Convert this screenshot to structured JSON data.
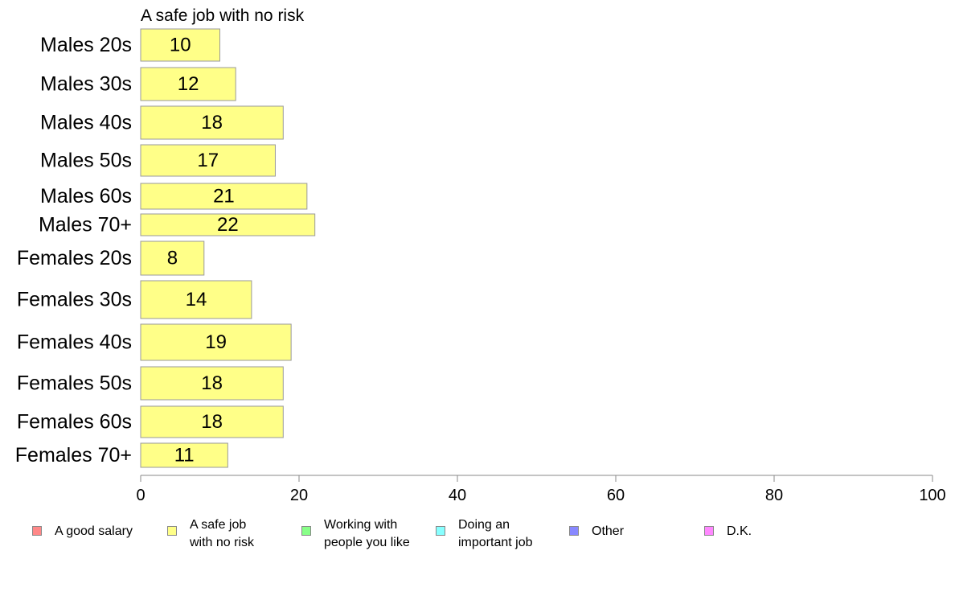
{
  "chart_data": {
    "type": "bar",
    "orientation": "horizontal",
    "title": "A safe job with no risk",
    "categories": [
      "Males 20s",
      "Males 30s",
      "Males 40s",
      "Males 50s",
      "Males 60s",
      "Males 70+",
      "Females 20s",
      "Females 30s",
      "Females 40s",
      "Females 50s",
      "Females 60s",
      "Females 70+"
    ],
    "values": [
      10,
      12,
      18,
      17,
      21,
      22,
      8,
      14,
      19,
      18,
      18,
      11
    ],
    "data_labels": [
      "10",
      "12",
      "18",
      "17",
      "21",
      "22",
      "8",
      "14",
      "19",
      "18",
      "18",
      "11"
    ],
    "xlim": [
      0,
      100
    ],
    "x_ticks": [
      "0",
      "20",
      "40",
      "60",
      "80",
      "100"
    ],
    "grid": false,
    "bar_color": "#ffff88",
    "bar_border_color": "#999999",
    "legend_position": "bottom",
    "legend": [
      {
        "label": "A good salary",
        "color": "#ff8888"
      },
      {
        "label": "A safe job\nwith no risk",
        "color": "#ffff88"
      },
      {
        "label": "Working with\npeople you like",
        "color": "#88ff88"
      },
      {
        "label": "Doing an\nimportant job",
        "color": "#88ffff"
      },
      {
        "label": "Other",
        "color": "#8888ff"
      },
      {
        "label": "D.K.",
        "color": "#ff88ff"
      }
    ]
  }
}
